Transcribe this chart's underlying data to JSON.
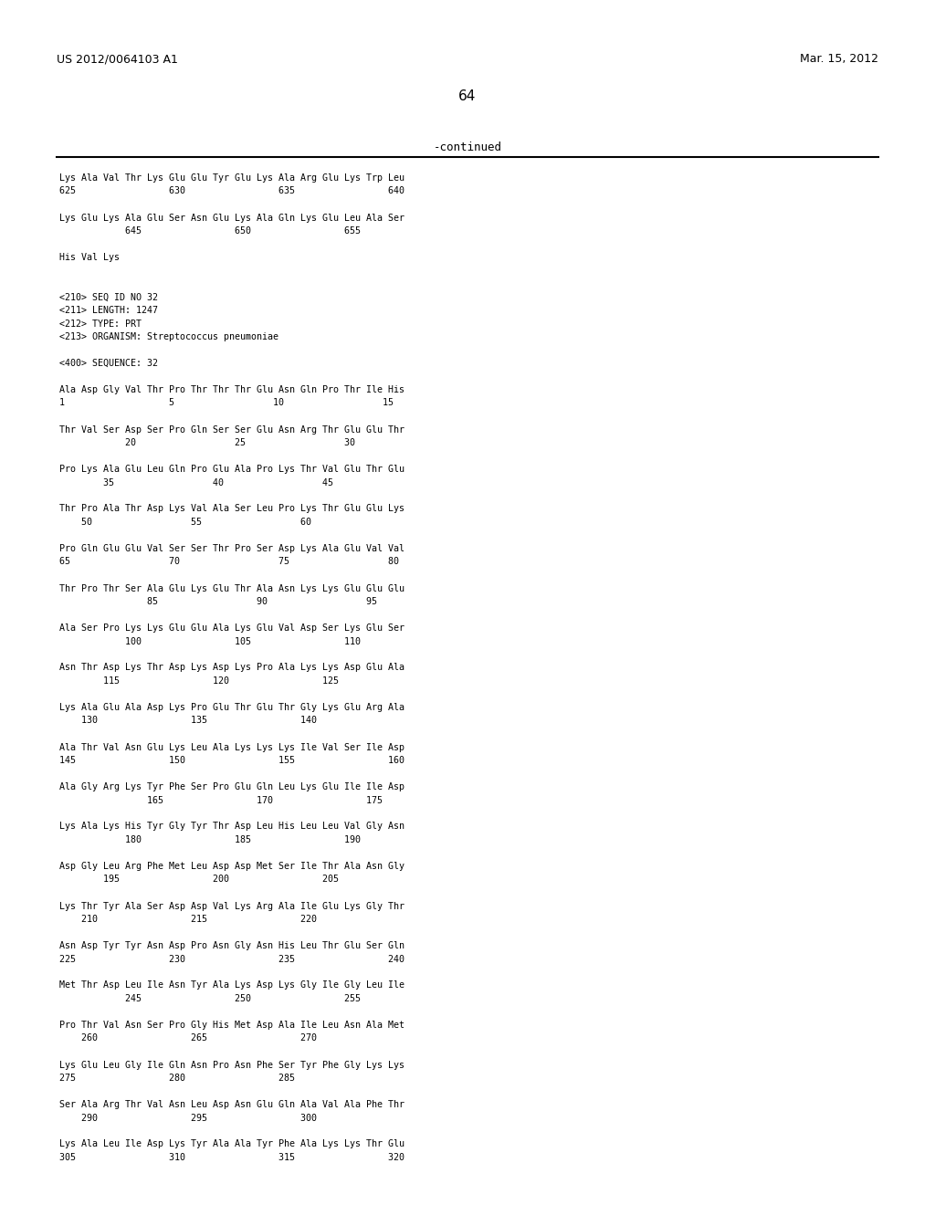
{
  "header_left": "US 2012/0064103 A1",
  "header_right": "Mar. 15, 2012",
  "page_number": "64",
  "continued_label": "-continued",
  "background_color": "#ffffff",
  "text_color": "#000000",
  "font_size": 7.2,
  "header_font_size": 9.0,
  "page_num_font_size": 11.0,
  "content_lines": [
    "Lys Ala Val Thr Lys Glu Glu Tyr Glu Lys Ala Arg Glu Lys Trp Leu",
    "625                 630                 635                 640",
    "",
    "Lys Glu Lys Ala Glu Ser Asn Glu Lys Ala Gln Lys Glu Leu Ala Ser",
    "            645                 650                 655",
    "",
    "His Val Lys",
    "",
    "",
    "<210> SEQ ID NO 32",
    "<211> LENGTH: 1247",
    "<212> TYPE: PRT",
    "<213> ORGANISM: Streptococcus pneumoniae",
    "",
    "<400> SEQUENCE: 32",
    "",
    "Ala Asp Gly Val Thr Pro Thr Thr Thr Glu Asn Gln Pro Thr Ile His",
    "1                   5                  10                  15",
    "",
    "Thr Val Ser Asp Ser Pro Gln Ser Ser Glu Asn Arg Thr Glu Glu Thr",
    "            20                  25                  30",
    "",
    "Pro Lys Ala Glu Leu Gln Pro Glu Ala Pro Lys Thr Val Glu Thr Glu",
    "        35                  40                  45",
    "",
    "Thr Pro Ala Thr Asp Lys Val Ala Ser Leu Pro Lys Thr Glu Glu Lys",
    "    50                  55                  60",
    "",
    "Pro Gln Glu Glu Val Ser Ser Thr Pro Ser Asp Lys Ala Glu Val Val",
    "65                  70                  75                  80",
    "",
    "Thr Pro Thr Ser Ala Glu Lys Glu Thr Ala Asn Lys Lys Glu Glu Glu",
    "                85                  90                  95",
    "",
    "Ala Ser Pro Lys Lys Glu Glu Ala Lys Glu Val Asp Ser Lys Glu Ser",
    "            100                 105                 110",
    "",
    "Asn Thr Asp Lys Thr Asp Lys Asp Lys Pro Ala Lys Lys Asp Glu Ala",
    "        115                 120                 125",
    "",
    "Lys Ala Glu Ala Asp Lys Pro Glu Thr Glu Thr Gly Lys Glu Arg Ala",
    "    130                 135                 140",
    "",
    "Ala Thr Val Asn Glu Lys Leu Ala Lys Lys Lys Ile Val Ser Ile Asp",
    "145                 150                 155                 160",
    "",
    "Ala Gly Arg Lys Tyr Phe Ser Pro Glu Gln Leu Lys Glu Ile Ile Asp",
    "                165                 170                 175",
    "",
    "Lys Ala Lys His Tyr Gly Tyr Thr Asp Leu His Leu Leu Val Gly Asn",
    "            180                 185                 190",
    "",
    "Asp Gly Leu Arg Phe Met Leu Asp Asp Met Ser Ile Thr Ala Asn Gly",
    "        195                 200                 205",
    "",
    "Lys Thr Tyr Ala Ser Asp Asp Val Lys Arg Ala Ile Glu Lys Gly Thr",
    "    210                 215                 220",
    "",
    "Asn Asp Tyr Tyr Asn Asp Pro Asn Gly Asn His Leu Thr Glu Ser Gln",
    "225                 230                 235                 240",
    "",
    "Met Thr Asp Leu Ile Asn Tyr Ala Lys Asp Lys Gly Ile Gly Leu Ile",
    "            245                 250                 255",
    "",
    "Pro Thr Val Asn Ser Pro Gly His Met Asp Ala Ile Leu Asn Ala Met",
    "    260                 265                 270",
    "",
    "Lys Glu Leu Gly Ile Gln Asn Pro Asn Phe Ser Tyr Phe Gly Lys Lys",
    "275                 280                 285",
    "",
    "Ser Ala Arg Thr Val Asn Leu Asp Asn Glu Gln Ala Val Ala Phe Thr",
    "    290                 295                 300",
    "",
    "Lys Ala Leu Ile Asp Lys Tyr Ala Ala Tyr Phe Ala Lys Lys Thr Glu",
    "305                 310                 315                 320"
  ]
}
